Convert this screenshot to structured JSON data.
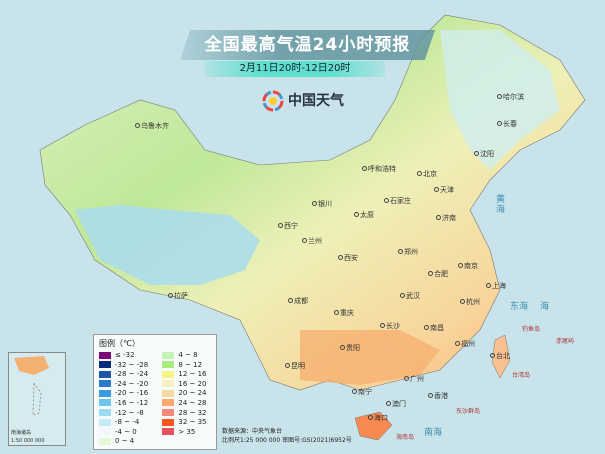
{
  "title": "全国最高气温24小时预报",
  "subtitle": "2月11日20时-12日20时",
  "logo": {
    "text": "中国天气",
    "icon": "china-weather-logo-icon"
  },
  "cities": [
    "乌鲁木齐",
    "哈尔滨",
    "长春",
    "沈阳",
    "呼和浩特",
    "北京",
    "天津",
    "石家庄",
    "太原",
    "银川",
    "西宁",
    "兰州",
    "济南",
    "郑州",
    "西安",
    "合肥",
    "南京",
    "上海",
    "拉萨",
    "成都",
    "重庆",
    "武汉",
    "杭州",
    "长沙",
    "南昌",
    "贵阳",
    "福州",
    "台北",
    "昆明",
    "南宁",
    "广州",
    "香港",
    "澳门",
    "海口"
  ],
  "seas": [
    "黄海",
    "东海",
    "南海",
    "海"
  ],
  "islands": [
    "台湾岛",
    "钓鱼岛",
    "赤尾屿",
    "东沙群岛",
    "海南岛"
  ],
  "legend": {
    "title": "图例（℃）",
    "items": [
      {
        "label": "≤ -32",
        "color": "#7a0a7a"
      },
      {
        "label": "-32 ~ -28",
        "color": "#0a2a80"
      },
      {
        "label": "-28 ~ -24",
        "color": "#1d55a8"
      },
      {
        "label": "-24 ~ -20",
        "color": "#2b78cf"
      },
      {
        "label": "-20 ~ -16",
        "color": "#3a9be0"
      },
      {
        "label": "-16 ~ -12",
        "color": "#6cc6ee"
      },
      {
        "label": "-12 ~ -8",
        "color": "#9bdaf3"
      },
      {
        "label": "-8 ~ -4",
        "color": "#c3ecf8"
      },
      {
        "label": "-4 ~ 0",
        "color": "#f2f8fa"
      },
      {
        "label": "0 ~ 4",
        "color": "#e3f8d8"
      },
      {
        "label": "4 ~ 8",
        "color": "#c4f3b8"
      },
      {
        "label": "8 ~ 12",
        "color": "#a8ec7e"
      },
      {
        "label": "12 ~ 16",
        "color": "#f5f58a"
      },
      {
        "label": "16 ~ 20",
        "color": "#f7efc4"
      },
      {
        "label": "20 ~ 24",
        "color": "#f8d7a3"
      },
      {
        "label": "24 ~ 28",
        "color": "#f8a86b"
      },
      {
        "label": "28 ~ 32",
        "color": "#f6877a"
      },
      {
        "label": "32 ~ 35",
        "color": "#f5561c"
      },
      {
        "label": "> 35",
        "color": "#e8505a"
      }
    ]
  },
  "source": {
    "line1": "数据来源：中央气象台",
    "line2": "比例尺1:25 000 000   审图号:GS(2021)6952号"
  },
  "inset": {
    "label": "南海诸岛",
    "scale": "1:50 000 000"
  }
}
